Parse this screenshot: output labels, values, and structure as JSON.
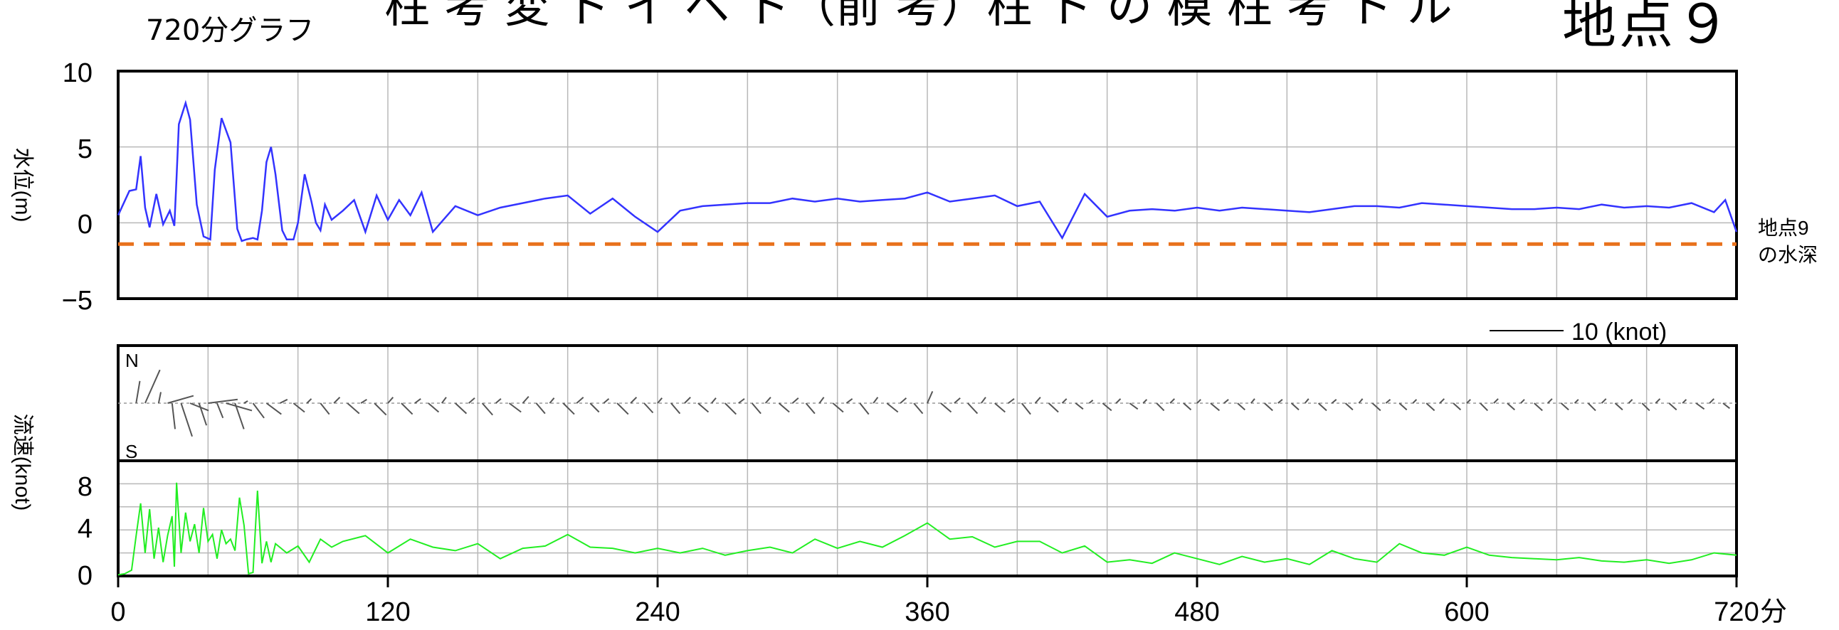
{
  "header": {
    "title_cut": "柱 考 変 ト イ ベ ト（前 考）柱 ト の 模 柱 考 ト ル",
    "graph_label": "720分グラフ",
    "station": "地点９"
  },
  "water_panel": {
    "ylabel": "水位(m)",
    "yticks": [
      "10",
      "5",
      "0",
      "−5"
    ],
    "depth_label_line1": "地点9",
    "depth_label_line2": "の水深"
  },
  "speed_panel": {
    "ylabel": "流速(knot)",
    "north": "N",
    "south": "S",
    "scale_label": "10 (knot)",
    "yticks": [
      "8",
      "4",
      "0"
    ]
  },
  "x_axis": {
    "ticks": [
      "0",
      "120",
      "240",
      "360",
      "480",
      "600",
      "720"
    ],
    "unit": "分"
  },
  "colors": {
    "water_line": "#3333ff",
    "depth_line": "#e8711c",
    "speed_line": "#22ee22",
    "vector": "#555555",
    "grid": "#b8b8b8"
  },
  "chart_data": [
    {
      "type": "line",
      "name": "water_level",
      "xlim": [
        0,
        720
      ],
      "ylim": [
        -5,
        10
      ],
      "ylabel": "水位(m)",
      "grid": true,
      "x": [
        0,
        5,
        8,
        10,
        12,
        14,
        17,
        20,
        23,
        25,
        26,
        27,
        30,
        32,
        35,
        38,
        41,
        43,
        46,
        50,
        53,
        55,
        57,
        60,
        62,
        64,
        66,
        68,
        70,
        73,
        75,
        78,
        80,
        83,
        86,
        88,
        90,
        92,
        95,
        100,
        105,
        110,
        115,
        120,
        125,
        130,
        135,
        140,
        150,
        160,
        170,
        180,
        190,
        200,
        210,
        220,
        230,
        240,
        250,
        260,
        270,
        280,
        290,
        300,
        310,
        320,
        330,
        340,
        350,
        360,
        370,
        380,
        390,
        400,
        410,
        420,
        430,
        440,
        450,
        460,
        470,
        480,
        490,
        500,
        510,
        520,
        530,
        540,
        550,
        560,
        570,
        580,
        590,
        600,
        610,
        620,
        630,
        640,
        650,
        660,
        670,
        680,
        690,
        700,
        710,
        715,
        720
      ],
      "y": [
        0.5,
        2.1,
        2.2,
        4.4,
        1.0,
        -0.3,
        1.9,
        -0.1,
        0.8,
        -0.2,
        3.0,
        6.5,
        7.9,
        6.8,
        1.2,
        -0.9,
        -1.1,
        3.5,
        6.9,
        5.3,
        -0.4,
        -1.2,
        -1.1,
        -1.0,
        -1.1,
        0.8,
        4.0,
        5.0,
        3.2,
        -0.5,
        -1.1,
        -1.1,
        0.0,
        3.2,
        1.4,
        0.0,
        -0.5,
        1.2,
        0.2,
        0.8,
        1.5,
        -0.6,
        1.8,
        0.2,
        1.5,
        0.5,
        2.0,
        -0.6,
        1.1,
        0.5,
        1.0,
        1.3,
        1.6,
        1.8,
        0.6,
        1.6,
        0.4,
        -0.6,
        0.8,
        1.1,
        1.2,
        1.3,
        1.3,
        1.6,
        1.4,
        1.6,
        1.4,
        1.5,
        1.6,
        2.0,
        1.4,
        1.6,
        1.8,
        1.1,
        1.4,
        -1.0,
        1.9,
        0.4,
        0.8,
        0.9,
        0.8,
        1.0,
        0.8,
        1.0,
        0.9,
        0.8,
        0.7,
        0.9,
        1.1,
        1.1,
        1.0,
        1.3,
        1.2,
        1.1,
        1.0,
        0.9,
        0.9,
        1.0,
        0.9,
        1.2,
        1.0,
        1.1,
        1.0,
        1.3,
        0.7,
        1.5,
        -0.6
      ]
    },
    {
      "type": "line",
      "name": "depth",
      "x": [
        0,
        720
      ],
      "y": [
        -1.4,
        -1.4
      ]
    },
    {
      "type": "line",
      "name": "current_speed",
      "xlim": [
        0,
        720
      ],
      "ylim": [
        0,
        10
      ],
      "ylabel": "流速(knot)",
      "grid": true,
      "x": [
        0,
        3,
        6,
        8,
        10,
        12,
        14,
        16,
        18,
        20,
        22,
        24,
        25,
        26,
        28,
        30,
        32,
        34,
        36,
        38,
        40,
        42,
        44,
        46,
        48,
        50,
        52,
        54,
        56,
        58,
        60,
        62,
        64,
        66,
        68,
        70,
        75,
        80,
        85,
        90,
        95,
        100,
        110,
        120,
        130,
        140,
        150,
        160,
        170,
        180,
        190,
        200,
        210,
        220,
        230,
        240,
        250,
        260,
        270,
        280,
        290,
        300,
        310,
        320,
        330,
        340,
        350,
        360,
        370,
        380,
        390,
        400,
        410,
        420,
        430,
        440,
        450,
        460,
        470,
        480,
        490,
        500,
        510,
        520,
        530,
        540,
        550,
        560,
        570,
        580,
        590,
        600,
        610,
        620,
        630,
        640,
        650,
        660,
        670,
        680,
        690,
        700,
        710,
        720
      ],
      "y": [
        0.1,
        0.2,
        0.5,
        3.5,
        6.3,
        2.0,
        5.8,
        1.5,
        4.2,
        1.2,
        3.5,
        5.2,
        0.8,
        8.1,
        2.0,
        5.5,
        3.0,
        4.5,
        2.0,
        5.9,
        3.0,
        3.6,
        1.5,
        4.0,
        2.8,
        3.2,
        2.2,
        6.8,
        4.4,
        0.2,
        0.3,
        7.4,
        1.1,
        3.0,
        1.2,
        2.8,
        2.0,
        2.6,
        1.2,
        3.2,
        2.5,
        3.0,
        3.5,
        2.0,
        3.2,
        2.5,
        2.2,
        2.8,
        1.5,
        2.4,
        2.6,
        3.6,
        2.5,
        2.4,
        2.0,
        2.4,
        2.0,
        2.4,
        1.8,
        2.2,
        2.5,
        2.0,
        3.2,
        2.4,
        3.0,
        2.5,
        3.5,
        4.6,
        3.2,
        3.4,
        2.5,
        3.0,
        3.0,
        2.0,
        2.6,
        1.2,
        1.4,
        1.1,
        2.0,
        1.5,
        1.0,
        1.7,
        1.2,
        1.5,
        1.0,
        2.2,
        1.5,
        1.2,
        2.8,
        2.0,
        1.8,
        2.5,
        1.8,
        1.6,
        1.5,
        1.4,
        1.6,
        1.3,
        1.2,
        1.4,
        1.1,
        1.4,
        2.0,
        1.8
      ]
    },
    {
      "type": "vector",
      "name": "current_direction",
      "scale_knot": 10,
      "x": [
        8,
        12,
        18,
        22,
        24,
        28,
        32,
        36,
        40,
        44,
        48,
        52,
        56,
        60,
        66,
        72,
        78,
        84,
        90,
        96,
        102,
        108,
        114,
        120,
        126,
        132,
        138,
        144,
        150,
        156,
        162,
        168,
        174,
        180,
        186,
        192,
        198,
        204,
        210,
        216,
        222,
        228,
        234,
        240,
        246,
        252,
        258,
        264,
        270,
        276,
        282,
        288,
        294,
        300,
        306,
        312,
        318,
        324,
        330,
        336,
        342,
        348,
        354,
        360,
        366,
        372,
        378,
        384,
        390,
        396,
        402,
        408,
        414,
        420,
        426,
        432,
        438,
        444,
        450,
        456,
        462,
        468,
        474,
        480,
        486,
        492,
        498,
        504,
        510,
        516,
        522,
        528,
        534,
        540,
        546,
        552,
        558,
        564,
        570,
        576,
        582,
        588,
        594,
        600,
        606,
        612,
        618,
        624,
        630,
        636,
        642,
        648,
        654,
        660,
        666,
        672,
        678,
        684,
        690,
        696,
        702,
        708,
        714
      ],
      "dx": [
        0.5,
        2.0,
        0.3,
        3.5,
        0.4,
        1.5,
        2.5,
        1.0,
        4.0,
        0.8,
        3.5,
        1.2,
        0.5,
        1.5,
        2.0,
        1.0,
        1.5,
        0.6,
        1.2,
        0.8,
        1.6,
        0.8,
        1.6,
        0.7,
        1.5,
        0.8,
        1.4,
        0.6,
        1.5,
        0.8,
        1.4,
        0.7,
        1.6,
        0.8,
        1.2,
        0.6,
        1.5,
        0.9,
        1.2,
        0.7,
        1.5,
        0.8,
        1.2,
        0.6,
        1.2,
        0.8,
        1.4,
        0.6,
        1.5,
        0.8,
        1.2,
        0.7,
        1.4,
        0.8,
        1.2,
        0.6,
        1.4,
        0.8,
        1.2,
        0.6,
        1.5,
        0.8,
        1.2,
        0.7,
        1.4,
        0.8,
        1.3,
        0.6,
        1.4,
        0.8,
        1.2,
        0.7,
        1.3,
        0.6,
        1.0,
        0.5,
        1.2,
        0.6,
        1.1,
        0.5,
        1.0,
        0.6,
        1.0,
        0.5,
        1.2,
        0.6,
        1.0,
        0.5,
        1.1,
        0.6,
        1.0,
        0.5,
        1.1,
        0.6,
        1.0,
        0.5,
        1.1,
        0.6,
        1.0,
        0.5,
        1.1,
        0.6,
        1.0,
        0.5,
        1.0,
        0.6,
        1.0,
        0.5,
        1.1,
        0.6,
        1.0,
        0.5,
        1.0,
        0.6,
        1.0,
        0.5,
        1.0,
        0.6,
        1.0,
        0.5,
        1.1,
        0.6,
        0.9
      ],
      "dy": [
        3.0,
        4.5,
        1.5,
        1.0,
        -3.5,
        -4.5,
        -1.0,
        -3.0,
        0.5,
        -2.0,
        -1.0,
        -3.5,
        0.3,
        -2.0,
        -1.5,
        0.5,
        -1.2,
        0.6,
        -1.5,
        0.8,
        -1.4,
        0.5,
        -1.6,
        0.8,
        -1.5,
        0.6,
        -1.2,
        0.8,
        -1.4,
        0.7,
        -1.6,
        0.6,
        -1.2,
        0.9,
        -1.4,
        0.7,
        -1.5,
        0.8,
        -1.2,
        0.6,
        -1.5,
        0.8,
        -1.3,
        0.7,
        -1.4,
        0.8,
        -1.2,
        0.7,
        -1.5,
        0.6,
        -1.4,
        0.8,
        -1.2,
        0.7,
        -1.4,
        0.8,
        -1.2,
        0.6,
        -1.5,
        0.8,
        -1.2,
        0.7,
        -1.4,
        1.6,
        -1.2,
        0.7,
        -1.4,
        0.8,
        -1.2,
        0.6,
        -1.5,
        0.8,
        -1.2,
        0.6,
        -0.8,
        0.4,
        -1.0,
        0.6,
        -0.8,
        0.5,
        -1.0,
        0.6,
        -0.9,
        0.5,
        -1.0,
        0.5,
        -0.9,
        0.6,
        -1.0,
        0.5,
        -0.9,
        0.6,
        -1.0,
        0.5,
        -0.9,
        0.6,
        -1.0,
        0.5,
        -0.9,
        0.5,
        -1.0,
        0.6,
        -0.9,
        0.5,
        -1.0,
        0.6,
        -0.9,
        0.5,
        -1.0,
        0.6,
        -0.9,
        0.5,
        -1.0,
        0.6,
        -0.9,
        0.5,
        -1.0,
        0.6,
        -0.9,
        0.5,
        -0.8,
        0.6,
        -0.7
      ]
    }
  ]
}
